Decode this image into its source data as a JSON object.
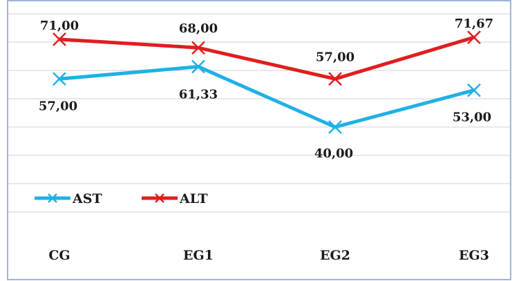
{
  "chart_data": {
    "type": "line",
    "categories": [
      "CG",
      "EG1",
      "EG2",
      "EG3"
    ],
    "series": [
      {
        "name": "AST",
        "values": [
          57.0,
          61.33,
          40.0,
          53.0
        ],
        "labels": [
          "57,00",
          "61,33",
          "40,00",
          "53,00"
        ],
        "color": "#1fb0e6"
      },
      {
        "name": "ALT",
        "values": [
          71.0,
          68.0,
          57.0,
          71.67
        ],
        "labels": [
          "71,00",
          "68,00",
          "57,00",
          "71,67"
        ],
        "color": "#e01e1e"
      }
    ],
    "ylim": [
      0,
      80
    ],
    "gridlines": true,
    "legend_position": "bottom-left",
    "frame_color": "#9fb5d6"
  }
}
